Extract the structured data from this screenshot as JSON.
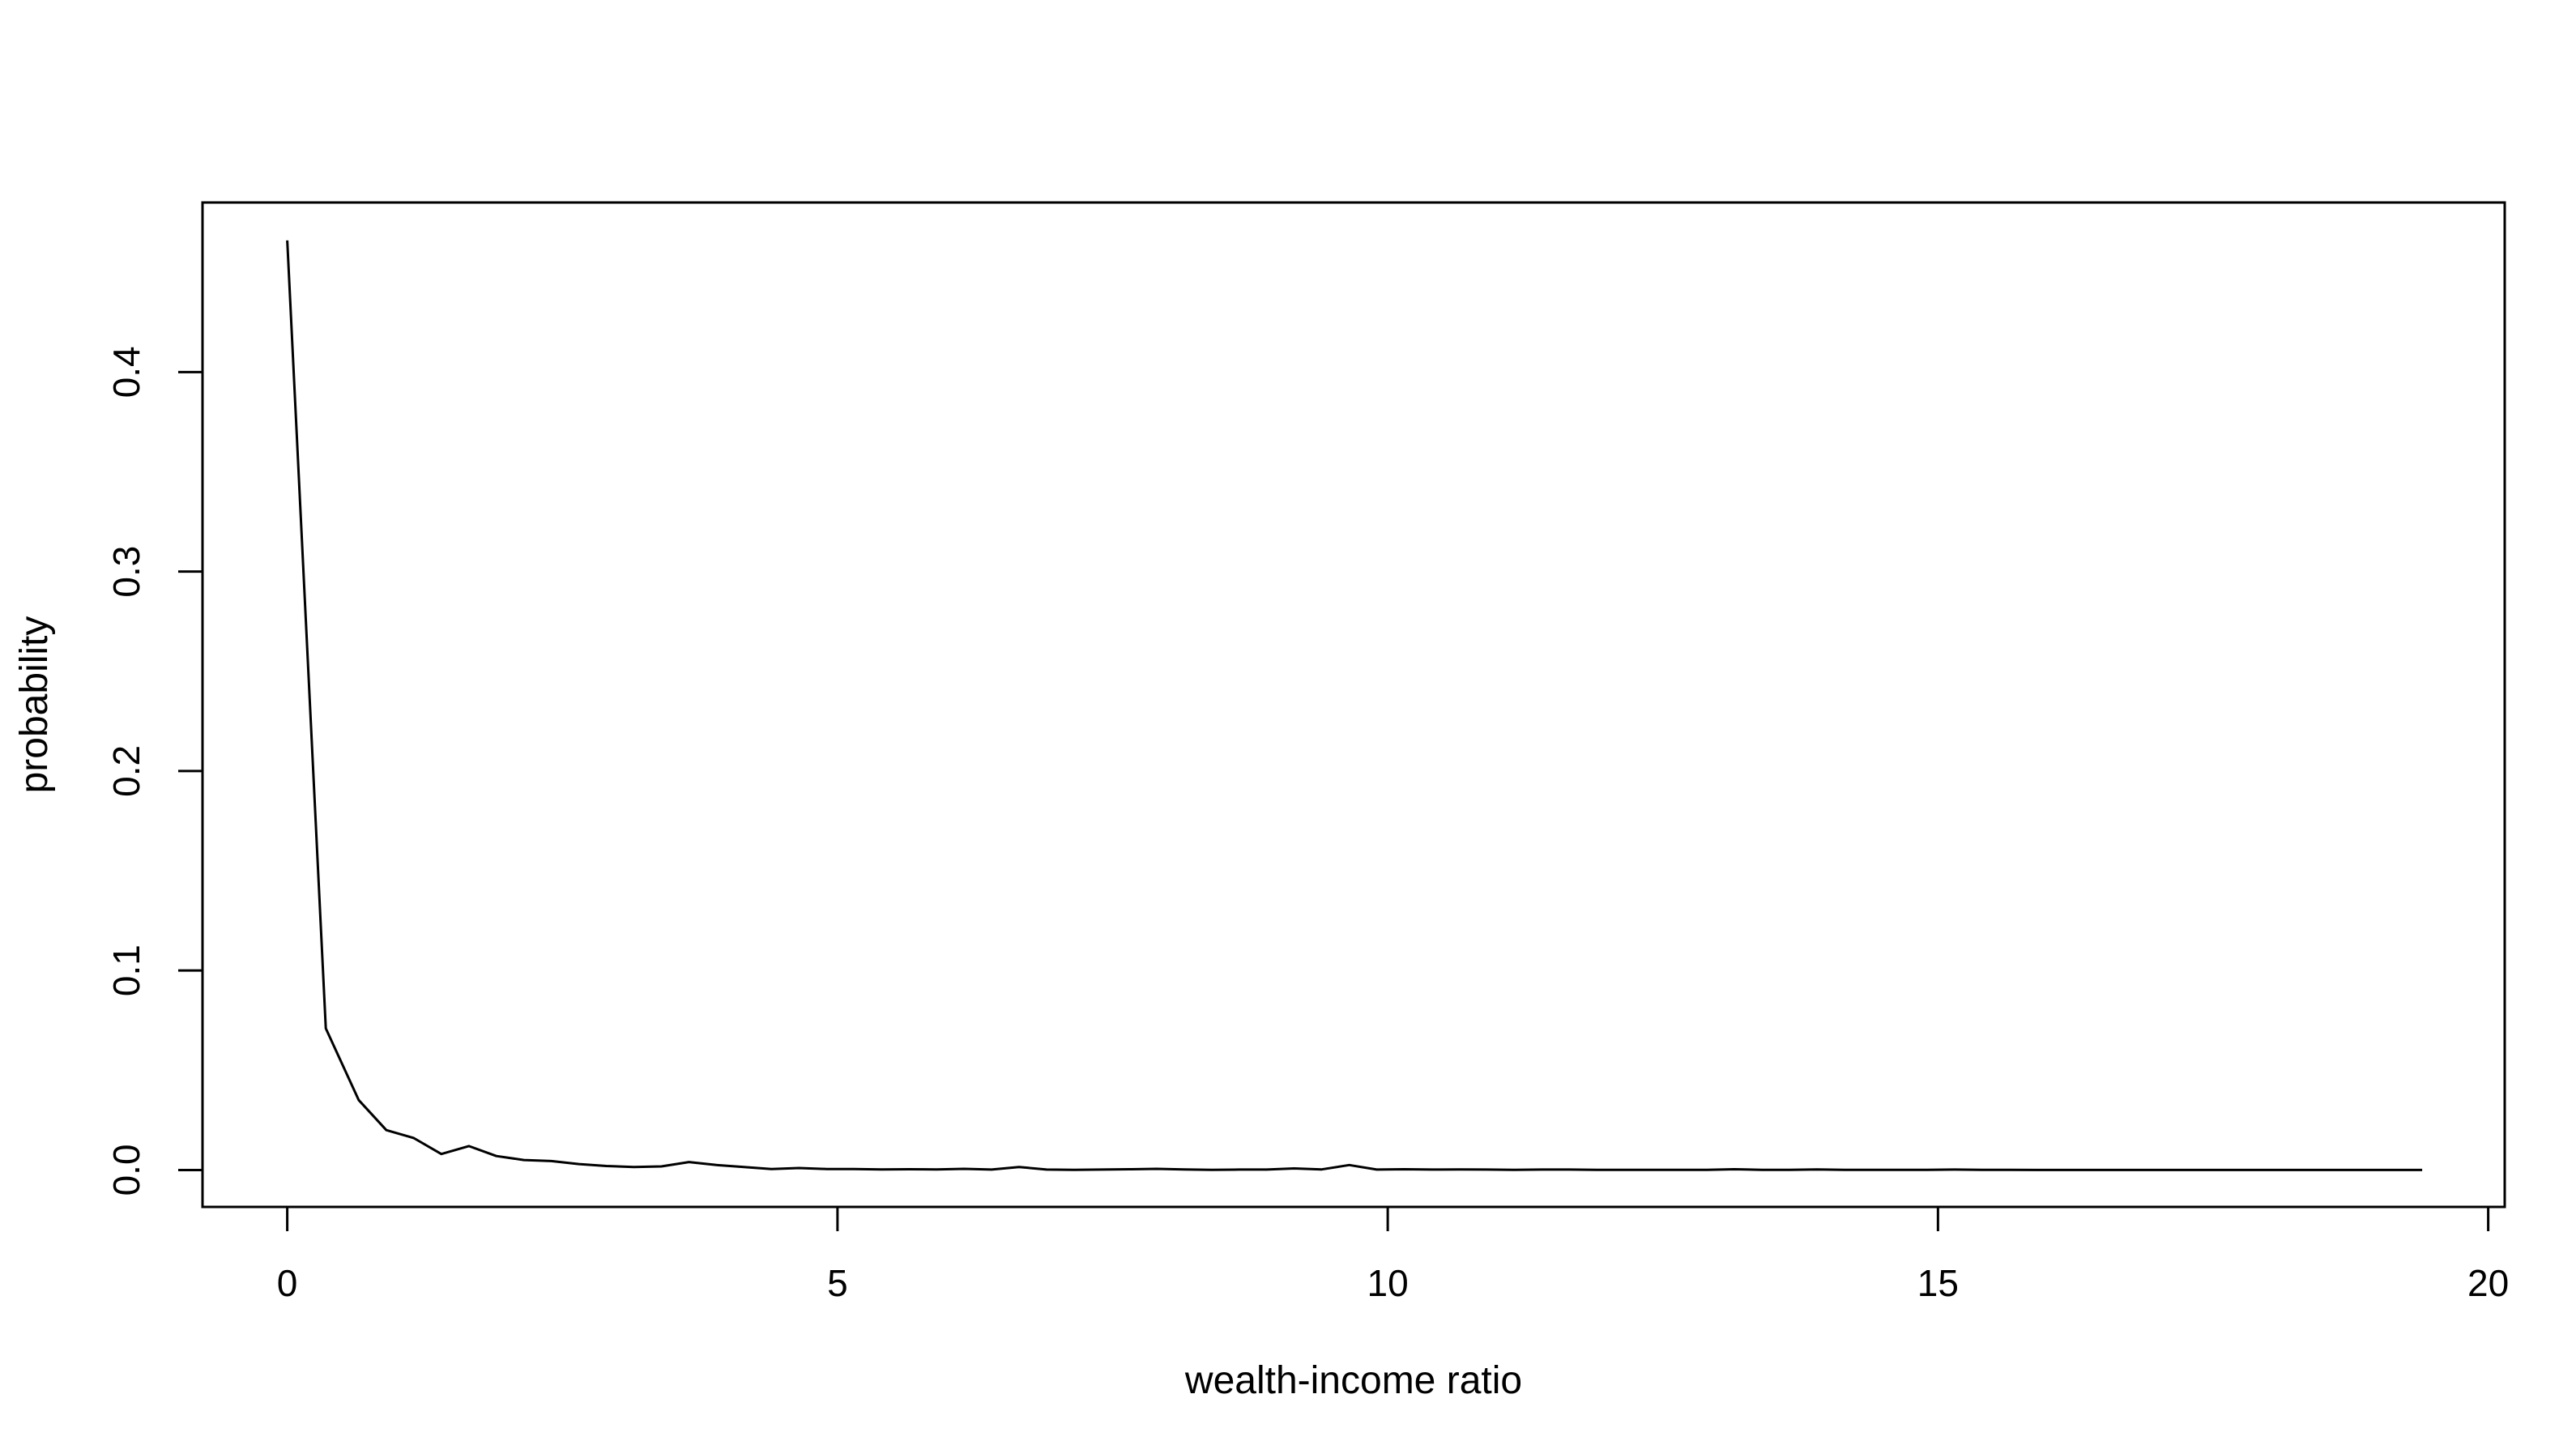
{
  "chart_data": {
    "type": "line",
    "title": "",
    "xlabel": "wealth-income ratio",
    "ylabel": "probability",
    "xlim": [
      -0.77,
      20.15
    ],
    "ylim": [
      -0.0185,
      0.485
    ],
    "x_ticks": [
      0,
      5,
      10,
      15,
      20
    ],
    "x_tick_labels": [
      "0",
      "5",
      "10",
      "15",
      "20"
    ],
    "y_ticks": [
      0.0,
      0.1,
      0.2,
      0.3,
      0.4
    ],
    "y_tick_labels": [
      "0.0",
      "0.1",
      "0.2",
      "0.3",
      "0.4"
    ],
    "grid": false,
    "legend": "none",
    "line_color": "#000000",
    "series": [
      {
        "x": [
          0.0,
          0.35,
          0.65,
          0.9,
          1.15,
          1.4,
          1.65,
          1.9,
          2.15,
          2.4,
          2.65,
          2.9,
          3.15,
          3.4,
          3.65,
          3.9,
          4.15,
          4.4,
          4.65,
          4.9,
          5.15,
          5.4,
          5.65,
          5.9,
          6.15,
          6.4,
          6.65,
          6.9,
          7.15,
          7.4,
          7.65,
          7.9,
          8.15,
          8.4,
          8.65,
          8.9,
          9.15,
          9.4,
          9.65,
          9.9,
          10.15,
          10.4,
          10.65,
          10.9,
          11.15,
          11.4,
          11.65,
          11.9,
          12.15,
          12.4,
          12.65,
          12.9,
          13.15,
          13.4,
          13.65,
          13.9,
          14.15,
          14.4,
          14.65,
          14.9,
          15.15,
          15.4,
          15.65,
          15.9,
          16.15,
          16.4,
          16.65,
          16.9,
          17.15,
          17.4,
          17.65,
          17.9,
          18.15,
          18.4,
          18.65,
          18.9,
          19.15,
          19.4
        ],
        "y": [
          0.466,
          0.071,
          0.035,
          0.02,
          0.016,
          0.008,
          0.012,
          0.007,
          0.005,
          0.0045,
          0.003,
          0.002,
          0.0015,
          0.0018,
          0.004,
          0.0025,
          0.0015,
          0.0005,
          0.001,
          0.0005,
          0.0005,
          0.0003,
          0.0004,
          0.0003,
          0.0006,
          0.0002,
          0.0015,
          0.0002,
          0.0001,
          0.0002,
          0.0004,
          0.0006,
          0.0003,
          0.0001,
          0.0002,
          0.0002,
          0.0008,
          0.0003,
          0.0025,
          0.0002,
          0.0004,
          0.0002,
          0.0003,
          0.0002,
          0.0001,
          0.0002,
          0.0002,
          0.0001,
          0.0001,
          0.0001,
          0.0001,
          0.0001,
          0.0004,
          0.0001,
          0.0001,
          0.0003,
          0.0001,
          0.0001,
          0.0001,
          0.0001,
          0.0002,
          0.0001,
          0.0001,
          0.0,
          0.0,
          0.0,
          0.0,
          0.0,
          0.0,
          0.0,
          0.0,
          0.0,
          0.0,
          0.0,
          0.0,
          0.0,
          0.0,
          0.0
        ]
      }
    ]
  }
}
